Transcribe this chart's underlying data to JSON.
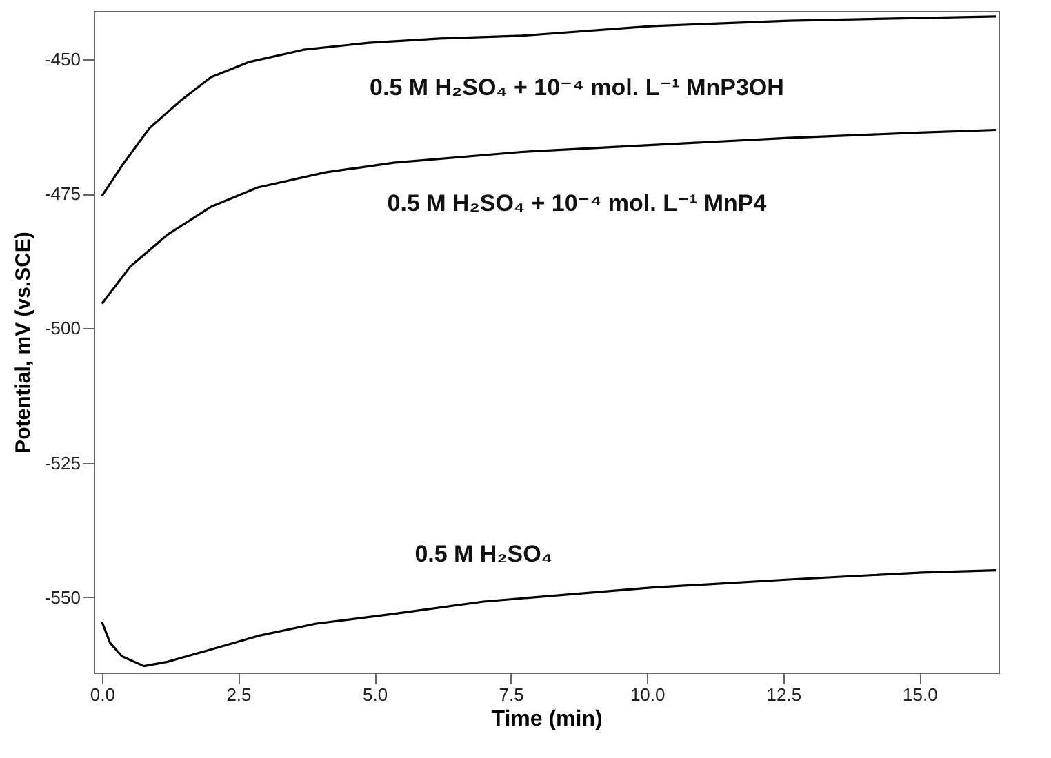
{
  "chart_data": {
    "type": "line",
    "xlabel": "Time (min)",
    "ylabel": "Potential, mV (vs.SCE)",
    "xlim": [
      -0.15,
      16.45
    ],
    "ylim": [
      -564,
      -441
    ],
    "xticks": [
      {
        "value": 0,
        "label": "0.0"
      },
      {
        "value": 2.5,
        "label": "2.5"
      },
      {
        "value": 5,
        "label": "5.0"
      },
      {
        "value": 7.5,
        "label": "7.5"
      },
      {
        "value": 10,
        "label": "10.0"
      },
      {
        "value": 12.5,
        "label": "12.5"
      },
      {
        "value": 15,
        "label": "15.0"
      }
    ],
    "yticks": [
      -450,
      -475,
      -500,
      -525,
      -550
    ],
    "grid": false,
    "marker": "none",
    "line_style": "solid",
    "series": [
      {
        "name": "0.5 M H₂SO₄ + 10⁻⁴ mol. L⁻¹  MnP3OH",
        "color": "#000000",
        "x": [
          0,
          0.37,
          0.87,
          1.44,
          2.0,
          2.69,
          3.7,
          4.9,
          6.2,
          7.7,
          10.1,
          12.6,
          15.0,
          16.4
        ],
        "values": [
          -475.4,
          -469.7,
          -462.8,
          -457.7,
          -453.3,
          -450.5,
          -448.2,
          -446.9,
          -446.1,
          -445.6,
          -443.8,
          -442.8,
          -442.3,
          -442
        ]
      },
      {
        "name": "0.5 M H₂SO₄ + 10⁻⁴ mol. L⁻¹  MnP4",
        "color": "#000000",
        "x": [
          0,
          0.52,
          1.2,
          2.0,
          2.86,
          4.1,
          5.35,
          7.7,
          10.1,
          12.6,
          15.0,
          16.4
        ],
        "values": [
          -495.4,
          -488.5,
          -482.6,
          -477.4,
          -473.8,
          -471,
          -469.2,
          -467.2,
          -465.9,
          -464.6,
          -463.6,
          -463.1
        ]
      },
      {
        "name": "0.5 M H₂SO₄",
        "color": "#000000",
        "x": [
          0,
          0.15,
          0.37,
          0.77,
          1.2,
          2.0,
          2.86,
          3.93,
          5.35,
          7.0,
          10.1,
          12.6,
          15.05,
          16.4
        ],
        "values": [
          -554.6,
          -558.5,
          -561,
          -562.8,
          -562,
          -559.7,
          -557.2,
          -554.9,
          -553.1,
          -550.8,
          -548.2,
          -546.7,
          -545.4,
          -545
        ]
      }
    ]
  }
}
